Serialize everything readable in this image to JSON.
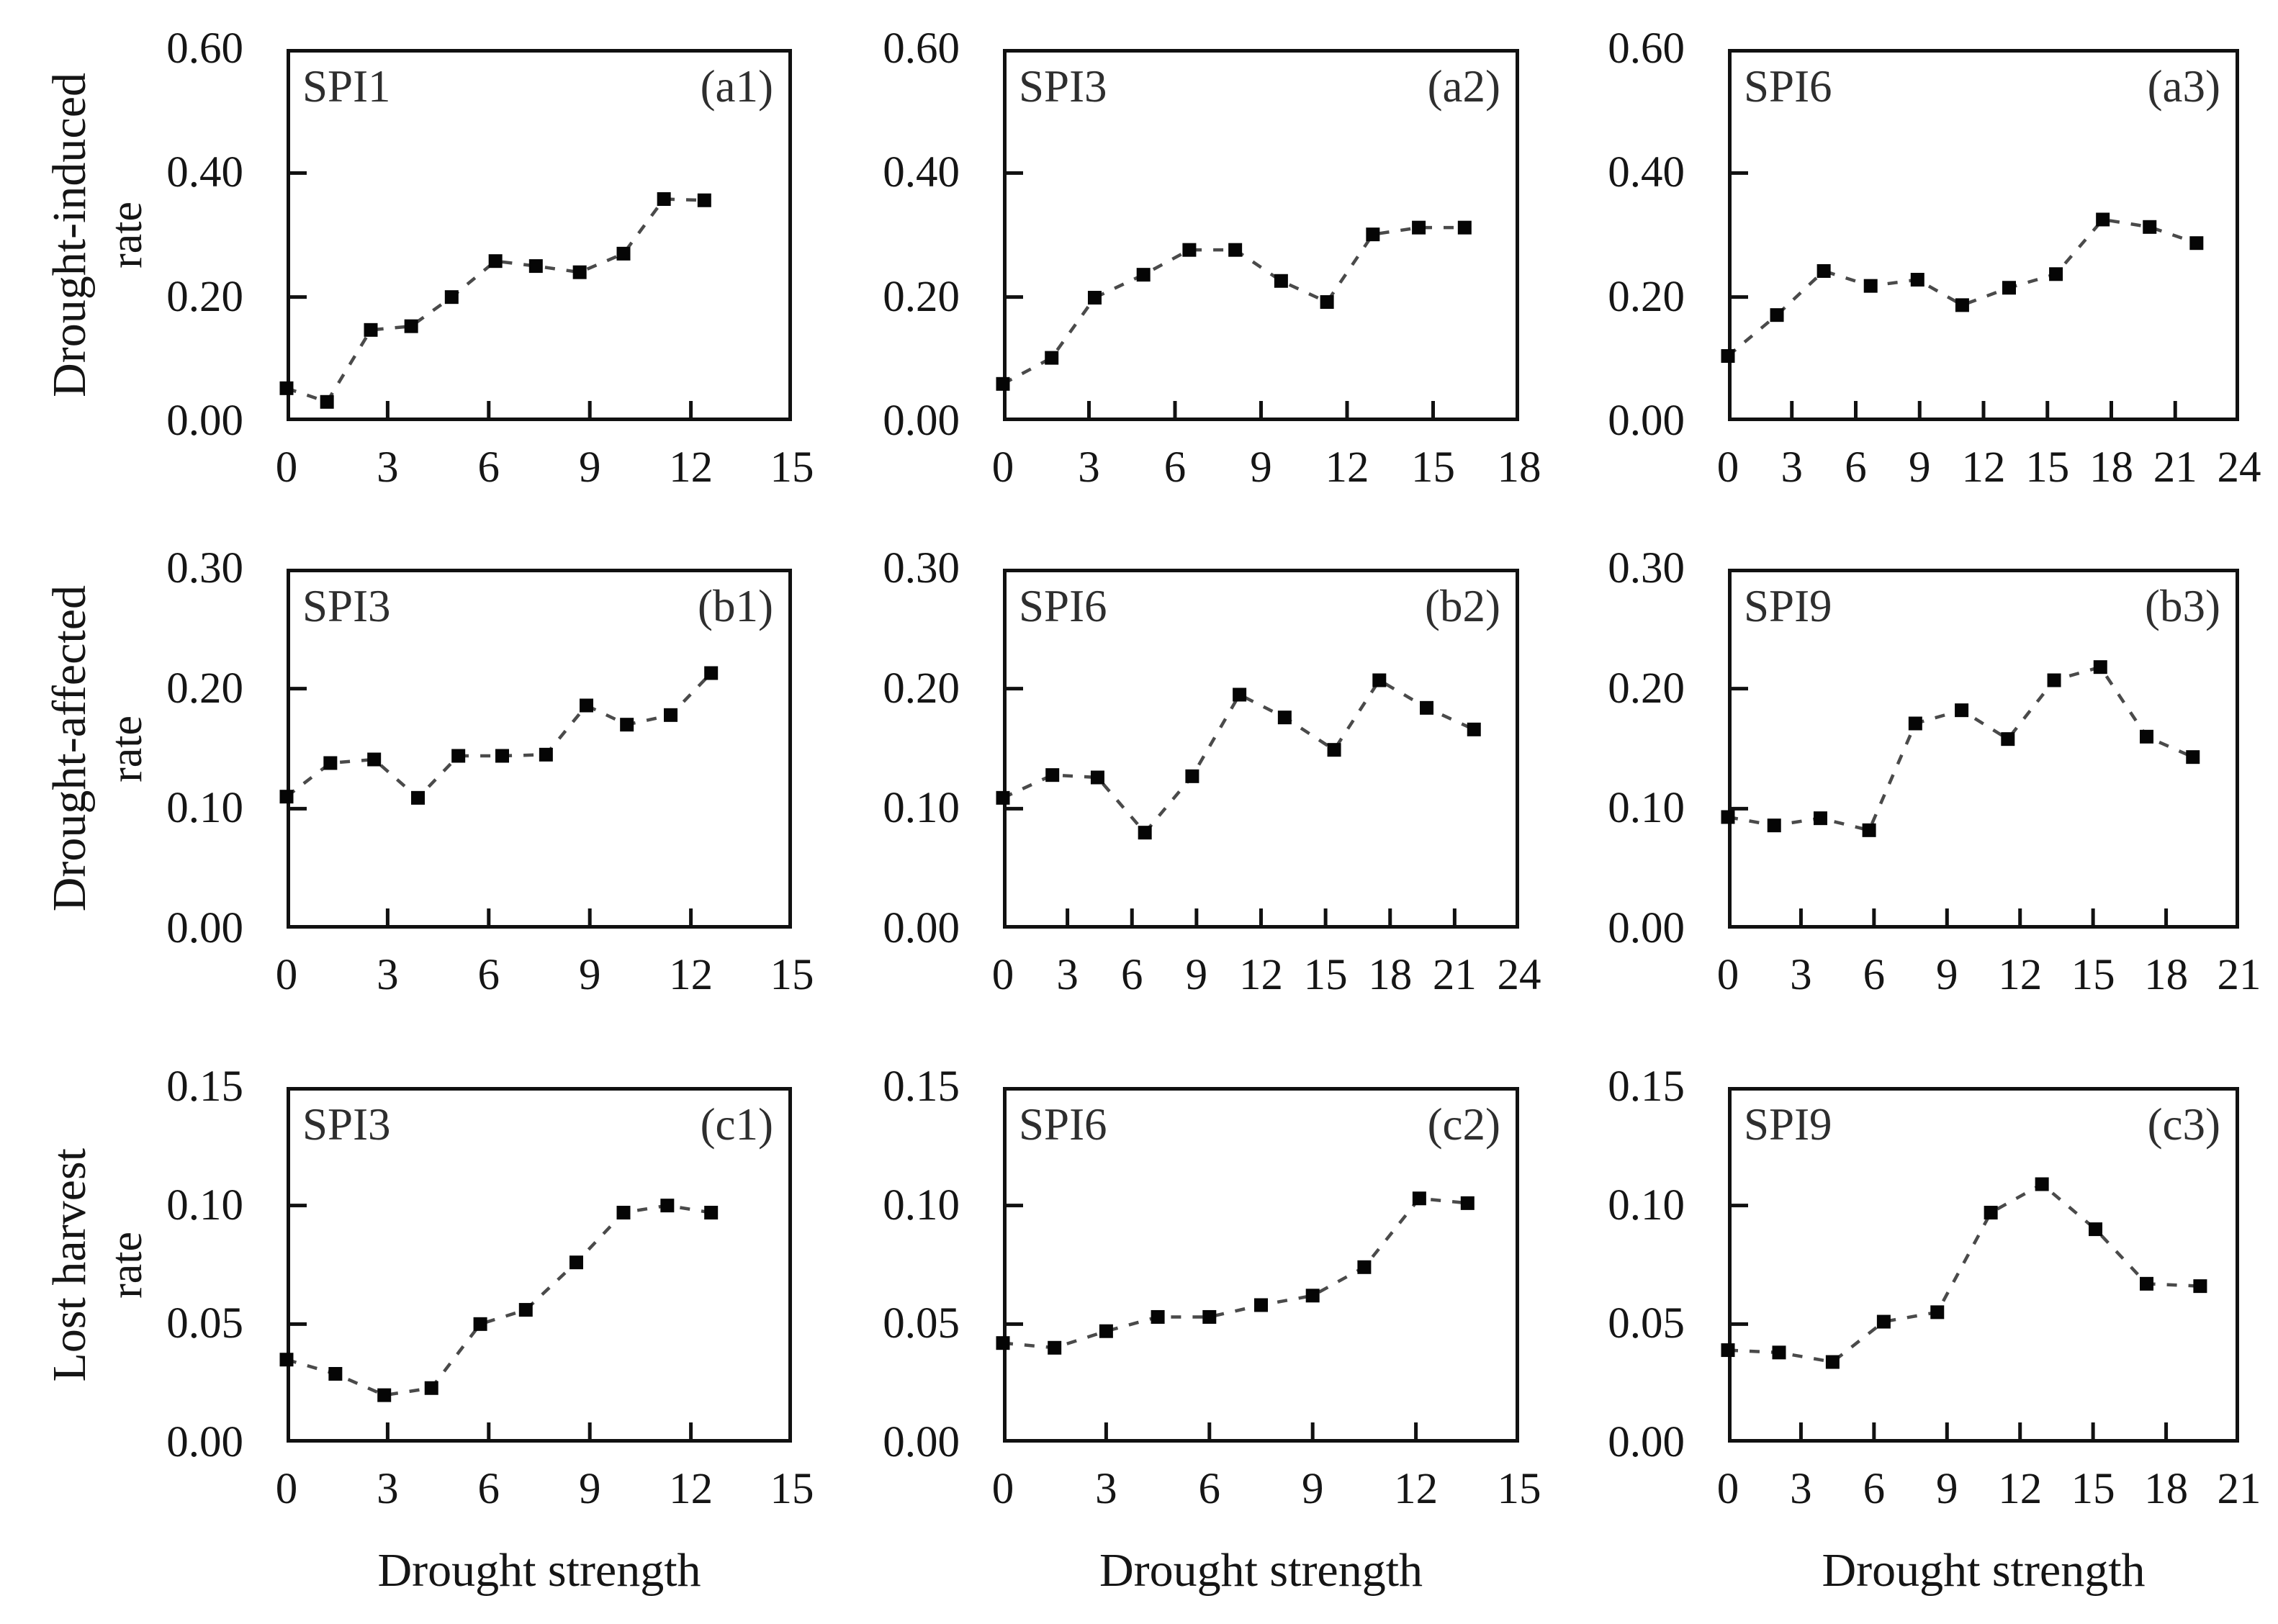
{
  "figure": {
    "background": "#ffffff",
    "axis_color": "#111111",
    "text_color": "#151515",
    "dash_line_color": "#4a4a4a",
    "marker_color": "#050505",
    "x_axis_title": "Drought strength",
    "row_titles": [
      {
        "line1": "Drought-induced",
        "line2": "rate"
      },
      {
        "line1": "Drought-affected",
        "line2": "rate"
      },
      {
        "line1": "Lost harvest",
        "line2": "rate"
      }
    ]
  },
  "chart_data": [
    {
      "type": "line",
      "series_label": "SPI1",
      "panel_tag": "(a1)",
      "row": 0,
      "col": 0,
      "xlim": [
        0,
        15
      ],
      "xticks": [
        0,
        3,
        6,
        9,
        12,
        15
      ],
      "ylim": [
        0,
        0.6
      ],
      "yticks": [
        "0.00",
        "0.20",
        "0.40",
        "0.60"
      ],
      "x": [
        0,
        1.2,
        2.5,
        3.7,
        4.9,
        6.2,
        7.4,
        8.7,
        10.0,
        11.2,
        12.4
      ],
      "y": [
        0.053,
        0.031,
        0.147,
        0.153,
        0.2,
        0.258,
        0.25,
        0.24,
        0.27,
        0.358,
        0.356
      ]
    },
    {
      "type": "line",
      "series_label": "SPI3",
      "panel_tag": "(a2)",
      "row": 0,
      "col": 1,
      "xlim": [
        0,
        18
      ],
      "xticks": [
        0,
        3,
        6,
        9,
        12,
        15,
        18
      ],
      "ylim": [
        0,
        0.6
      ],
      "yticks": [
        "0.00",
        "0.20",
        "0.40",
        "0.60"
      ],
      "x": [
        0,
        1.7,
        3.2,
        4.9,
        6.5,
        8.1,
        9.7,
        11.3,
        12.9,
        14.5,
        16.1
      ],
      "y": [
        0.06,
        0.102,
        0.199,
        0.236,
        0.276,
        0.276,
        0.226,
        0.192,
        0.301,
        0.312,
        0.312
      ]
    },
    {
      "type": "line",
      "series_label": "SPI6",
      "panel_tag": "(a3)",
      "row": 0,
      "col": 2,
      "xlim": [
        0,
        24
      ],
      "xticks": [
        0,
        3,
        6,
        9,
        12,
        15,
        18,
        21,
        24
      ],
      "ylim": [
        0,
        0.6
      ],
      "yticks": [
        "0.00",
        "0.20",
        "0.40",
        "0.60"
      ],
      "x": [
        0,
        2.3,
        4.5,
        6.7,
        8.9,
        11.0,
        13.2,
        15.4,
        17.6,
        19.8,
        22.0
      ],
      "y": [
        0.105,
        0.171,
        0.242,
        0.218,
        0.228,
        0.187,
        0.215,
        0.237,
        0.325,
        0.313,
        0.287
      ]
    },
    {
      "type": "line",
      "series_label": "SPI3",
      "panel_tag": "(b1)",
      "row": 1,
      "col": 0,
      "xlim": [
        0,
        15
      ],
      "xticks": [
        0,
        3,
        6,
        9,
        12,
        15
      ],
      "ylim": [
        0,
        0.3
      ],
      "yticks": [
        "0.00",
        "0.10",
        "0.20",
        "0.30"
      ],
      "x": [
        0,
        1.3,
        2.6,
        3.9,
        5.1,
        6.4,
        7.7,
        8.9,
        10.1,
        11.4,
        12.6
      ],
      "y": [
        0.11,
        0.138,
        0.141,
        0.109,
        0.144,
        0.144,
        0.145,
        0.186,
        0.17,
        0.178,
        0.213
      ]
    },
    {
      "type": "line",
      "series_label": "SPI6",
      "panel_tag": "(b2)",
      "row": 1,
      "col": 1,
      "xlim": [
        0,
        24
      ],
      "xticks": [
        0,
        3,
        6,
        9,
        12,
        15,
        18,
        21,
        24
      ],
      "ylim": [
        0,
        0.3
      ],
      "yticks": [
        "0.00",
        "0.10",
        "0.20",
        "0.30"
      ],
      "x": [
        0,
        2.3,
        4.4,
        6.6,
        8.8,
        11.0,
        13.1,
        15.4,
        17.5,
        19.7,
        21.9
      ],
      "y": [
        0.109,
        0.128,
        0.126,
        0.08,
        0.127,
        0.195,
        0.176,
        0.149,
        0.207,
        0.184,
        0.166
      ]
    },
    {
      "type": "line",
      "series_label": "SPI9",
      "panel_tag": "(b3)",
      "row": 1,
      "col": 2,
      "xlim": [
        0,
        21
      ],
      "xticks": [
        0,
        3,
        6,
        9,
        12,
        15,
        18,
        21
      ],
      "ylim": [
        0,
        0.3
      ],
      "yticks": [
        "0.00",
        "0.10",
        "0.20",
        "0.30"
      ],
      "x": [
        0,
        1.9,
        3.8,
        5.8,
        7.7,
        9.6,
        11.5,
        13.4,
        15.3,
        17.2,
        19.1
      ],
      "y": [
        0.093,
        0.086,
        0.092,
        0.082,
        0.171,
        0.182,
        0.158,
        0.207,
        0.218,
        0.16,
        0.143
      ]
    },
    {
      "type": "line",
      "series_label": "SPI3",
      "panel_tag": "(c1)",
      "row": 2,
      "col": 0,
      "xlim": [
        0,
        15
      ],
      "xticks": [
        0,
        3,
        6,
        9,
        12,
        15
      ],
      "ylim": [
        0,
        0.15
      ],
      "yticks": [
        "0.00",
        "0.05",
        "0.10",
        "0.15"
      ],
      "x": [
        0,
        1.45,
        2.9,
        4.3,
        5.75,
        7.1,
        8.6,
        10.0,
        11.3,
        12.6
      ],
      "y": [
        0.035,
        0.029,
        0.02,
        0.023,
        0.05,
        0.056,
        0.076,
        0.097,
        0.1,
        0.097
      ]
    },
    {
      "type": "line",
      "series_label": "SPI6",
      "panel_tag": "(c2)",
      "row": 2,
      "col": 1,
      "xlim": [
        0,
        15
      ],
      "xticks": [
        0,
        3,
        6,
        9,
        12,
        15
      ],
      "ylim": [
        0,
        0.15
      ],
      "yticks": [
        "0.00",
        "0.05",
        "0.10",
        "0.15"
      ],
      "x": [
        0,
        1.5,
        3.0,
        4.5,
        6.0,
        7.5,
        9.0,
        10.5,
        12.1,
        13.5
      ],
      "y": [
        0.042,
        0.04,
        0.047,
        0.053,
        0.053,
        0.058,
        0.062,
        0.074,
        0.103,
        0.101
      ]
    },
    {
      "type": "line",
      "series_label": "SPI9",
      "panel_tag": "(c3)",
      "row": 2,
      "col": 2,
      "xlim": [
        0,
        21
      ],
      "xticks": [
        0,
        3,
        6,
        9,
        12,
        15,
        18,
        21
      ],
      "ylim": [
        0,
        0.15
      ],
      "yticks": [
        "0.00",
        "0.05",
        "0.10",
        "0.15"
      ],
      "x": [
        0,
        2.1,
        4.3,
        6.4,
        8.6,
        10.8,
        12.9,
        15.1,
        17.2,
        19.4
      ],
      "y": [
        0.039,
        0.038,
        0.034,
        0.051,
        0.055,
        0.097,
        0.109,
        0.09,
        0.067,
        0.066
      ]
    }
  ]
}
